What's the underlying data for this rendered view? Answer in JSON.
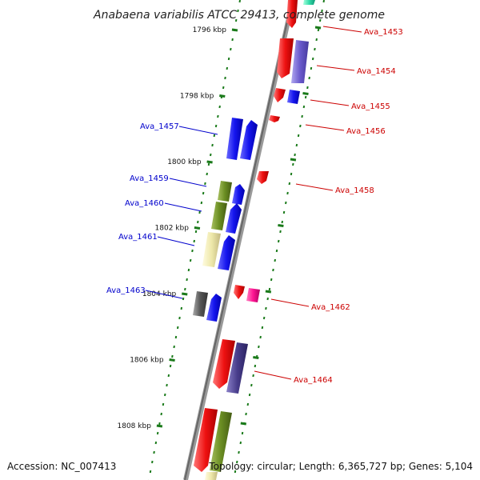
{
  "map": {
    "title": "Anabaena variabilis ATCC 29413, complete genome",
    "accession": "Accession: NC_007413",
    "topology": "Topology: circular; Length: 6,365,727 bp; Genes: 5,104"
  },
  "ticks": [
    {
      "label": "1796 kbp",
      "kbp": 1796
    },
    {
      "label": "1798 kbp",
      "kbp": 1798
    },
    {
      "label": "1800 kbp",
      "kbp": 1800
    },
    {
      "label": "1802 kbp",
      "kbp": 1802
    },
    {
      "label": "1804 kbp",
      "kbp": 1804
    },
    {
      "label": "1806 kbp",
      "kbp": 1806
    },
    {
      "label": "1808 kbp",
      "kbp": 1808
    }
  ],
  "genes": [
    {
      "name": "Ava_1453",
      "strand": "reverse",
      "color": "#ee1111"
    },
    {
      "name": "Ava_1454",
      "strand": "reverse",
      "color": "#6a5acd"
    },
    {
      "name": "Ava_1455",
      "strand": "reverse",
      "color": "#1515ee"
    },
    {
      "name": "Ava_1456",
      "strand": "reverse",
      "color": "#ee1111"
    },
    {
      "name": "Ava_1457",
      "strand": "forward",
      "color": "#1515ee"
    },
    {
      "name": "Ava_1458",
      "strand": "reverse",
      "color": "#ee1111"
    },
    {
      "name": "Ava_1459",
      "strand": "forward",
      "color": "#6b8e23"
    },
    {
      "name": "Ava_1460",
      "strand": "forward",
      "color": "#1515ee"
    },
    {
      "name": "Ava_1461",
      "strand": "forward",
      "color": "#eee8aa"
    },
    {
      "name": "Ava_1462",
      "strand": "reverse",
      "color": "#ff1493"
    },
    {
      "name": "Ava_1463",
      "strand": "forward",
      "color": "#555555"
    },
    {
      "name": "Ava_1464",
      "strand": "reverse",
      "color": "#483d8b"
    }
  ]
}
